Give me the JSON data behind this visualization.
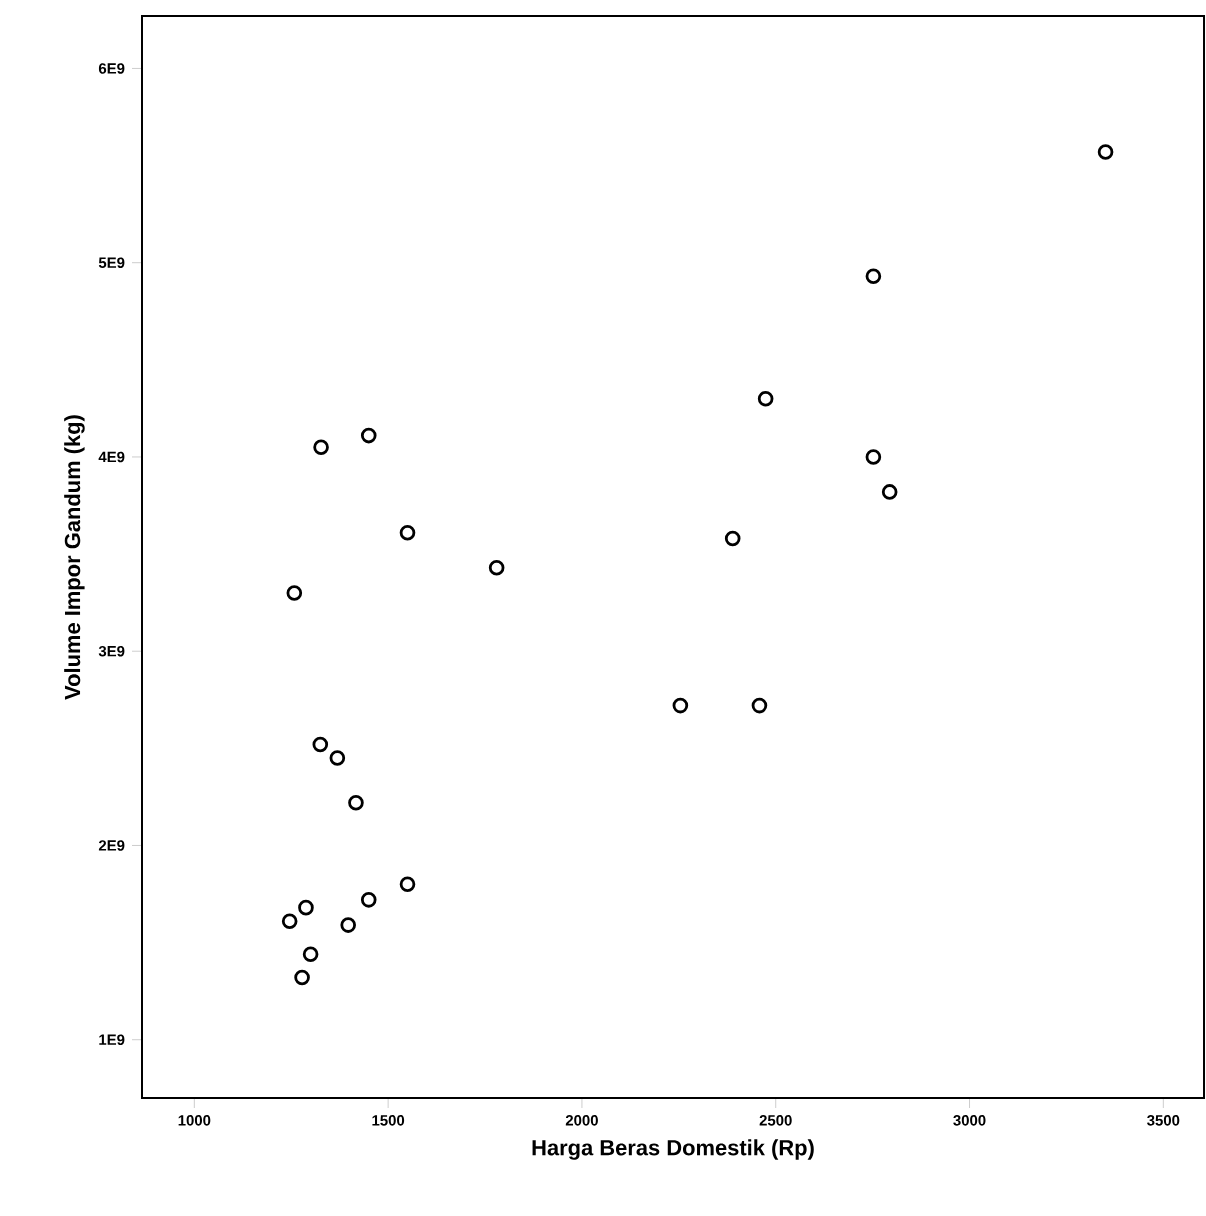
{
  "chart_data": {
    "type": "scatter",
    "xlabel": "Harga Beras Domestik (Rp)",
    "ylabel": "Volume Impor Gandum (kg)",
    "x": [
      3351,
      2752,
      2474,
      1327,
      1450,
      2752,
      2794,
      1550,
      2389,
      1780,
      1258,
      2254,
      2458,
      1325,
      1369,
      1417,
      1550,
      1450,
      1288,
      1246,
      1397,
      1300,
      1278
    ],
    "values": [
      5570000000,
      4930000000,
      4300000000,
      4050000000,
      4110000000,
      4000000000,
      3820000000,
      3610000000,
      3580000000,
      3430000000,
      3300000000,
      2720000000,
      2720000000,
      2520000000,
      2450000000,
      2220000000,
      1800000000,
      1720000000,
      1680000000,
      1610000000,
      1590000000,
      1440000000,
      1320000000
    ],
    "color": "#000000",
    "marker": "circle",
    "xlim": [
      865,
      3605
    ],
    "ylim": [
      700000000,
      6270000000
    ],
    "xticks": [
      1000,
      1500,
      2000,
      2500,
      3000,
      3500
    ],
    "yticks": [
      {
        "value": 1000000000,
        "label": "1E9"
      },
      {
        "value": 2000000000,
        "label": "2E9"
      },
      {
        "value": 3000000000,
        "label": "3E9"
      },
      {
        "value": 4000000000,
        "label": "4E9"
      },
      {
        "value": 5000000000,
        "label": "5E9"
      },
      {
        "value": 6000000000,
        "label": "6E9"
      }
    ]
  }
}
